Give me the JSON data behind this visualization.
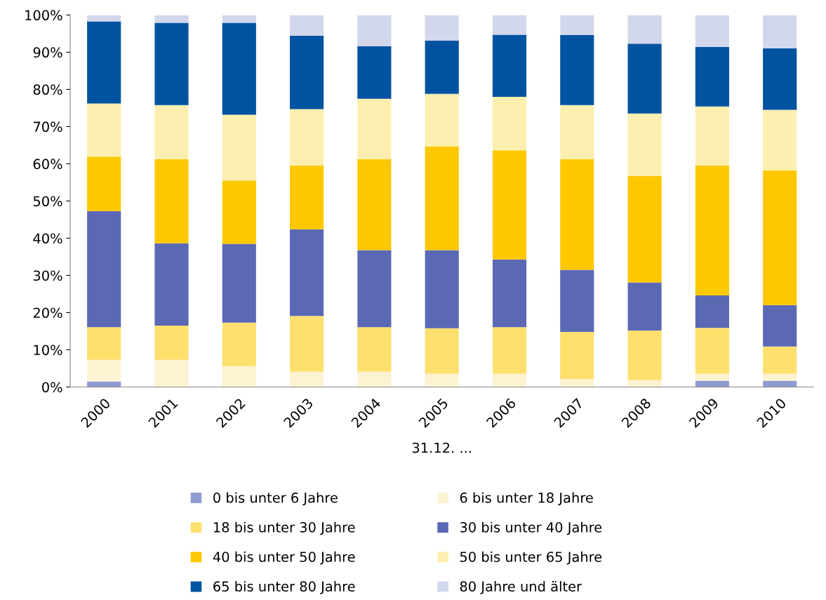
{
  "chart_data": {
    "type": "bar",
    "stacked": true,
    "xlabel": "31.12. ...",
    "categories": [
      "2000",
      "2001",
      "2002",
      "2003",
      "2004",
      "2005",
      "2006",
      "2007",
      "2008",
      "2009",
      "2010"
    ],
    "series": [
      {
        "name": "0 bis unter 6 Jahre",
        "color": "#8f9bd1",
        "values": [
          1.5,
          0,
          0,
          0,
          0,
          0,
          0,
          0,
          0,
          1.7,
          1.7
        ]
      },
      {
        "name": "6 bis unter 18 Jahre",
        "color": "#fdf3d2",
        "values": [
          5.8,
          7.3,
          5.6,
          4.1,
          4.1,
          3.6,
          3.6,
          2.1,
          1.9,
          1.9,
          1.9
        ]
      },
      {
        "name": "18 bis unter 30 Jahre",
        "color": "#fde06e",
        "values": [
          8.8,
          9.2,
          11.7,
          15.0,
          12.0,
          12.2,
          12.5,
          12.7,
          13.3,
          12.3,
          7.3
        ]
      },
      {
        "name": "30 bis unter 40 Jahre",
        "color": "#5b69b5",
        "values": [
          31.2,
          22.1,
          21.2,
          23.3,
          20.7,
          21.0,
          18.2,
          16.7,
          12.9,
          8.7,
          11.1
        ]
      },
      {
        "name": "40 bis unter 50 Jahre",
        "color": "#fdc800",
        "values": [
          14.6,
          22.6,
          17.0,
          17.1,
          24.4,
          27.9,
          29.3,
          29.7,
          28.6,
          34.9,
          36.2
        ]
      },
      {
        "name": "50 bis unter 65 Jahre",
        "color": "#fdefb0",
        "values": [
          14.3,
          14.6,
          17.7,
          15.2,
          16.3,
          14.1,
          14.4,
          14.6,
          16.8,
          15.9,
          16.3
        ]
      },
      {
        "name": "65 bis unter 80 Jahre",
        "color": "#0053a0",
        "values": [
          22.1,
          22.1,
          24.7,
          19.7,
          14.1,
          14.3,
          16.7,
          18.8,
          18.8,
          16.0,
          16.5
        ]
      },
      {
        "name": "80 Jahre und älter",
        "color": "#d3d7ec",
        "values": [
          1.7,
          2.1,
          2.1,
          5.6,
          8.4,
          6.9,
          5.3,
          5.4,
          7.7,
          8.6,
          9.0
        ]
      }
    ],
    "ylim": [
      0,
      100
    ],
    "yticks": [
      {
        "value": 0,
        "label": "0%"
      },
      {
        "value": 10,
        "label": "10%"
      },
      {
        "value": 20,
        "label": "20%"
      },
      {
        "value": 30,
        "label": "30%"
      },
      {
        "value": 40,
        "label": "40%"
      },
      {
        "value": 50,
        "label": "50%"
      },
      {
        "value": 60,
        "label": "60%"
      },
      {
        "value": 70,
        "label": "70%"
      },
      {
        "value": 80,
        "label": "80%"
      },
      {
        "value": 90,
        "label": "90%"
      },
      {
        "value": 100,
        "label": "100%"
      }
    ],
    "legend": "bottom"
  }
}
